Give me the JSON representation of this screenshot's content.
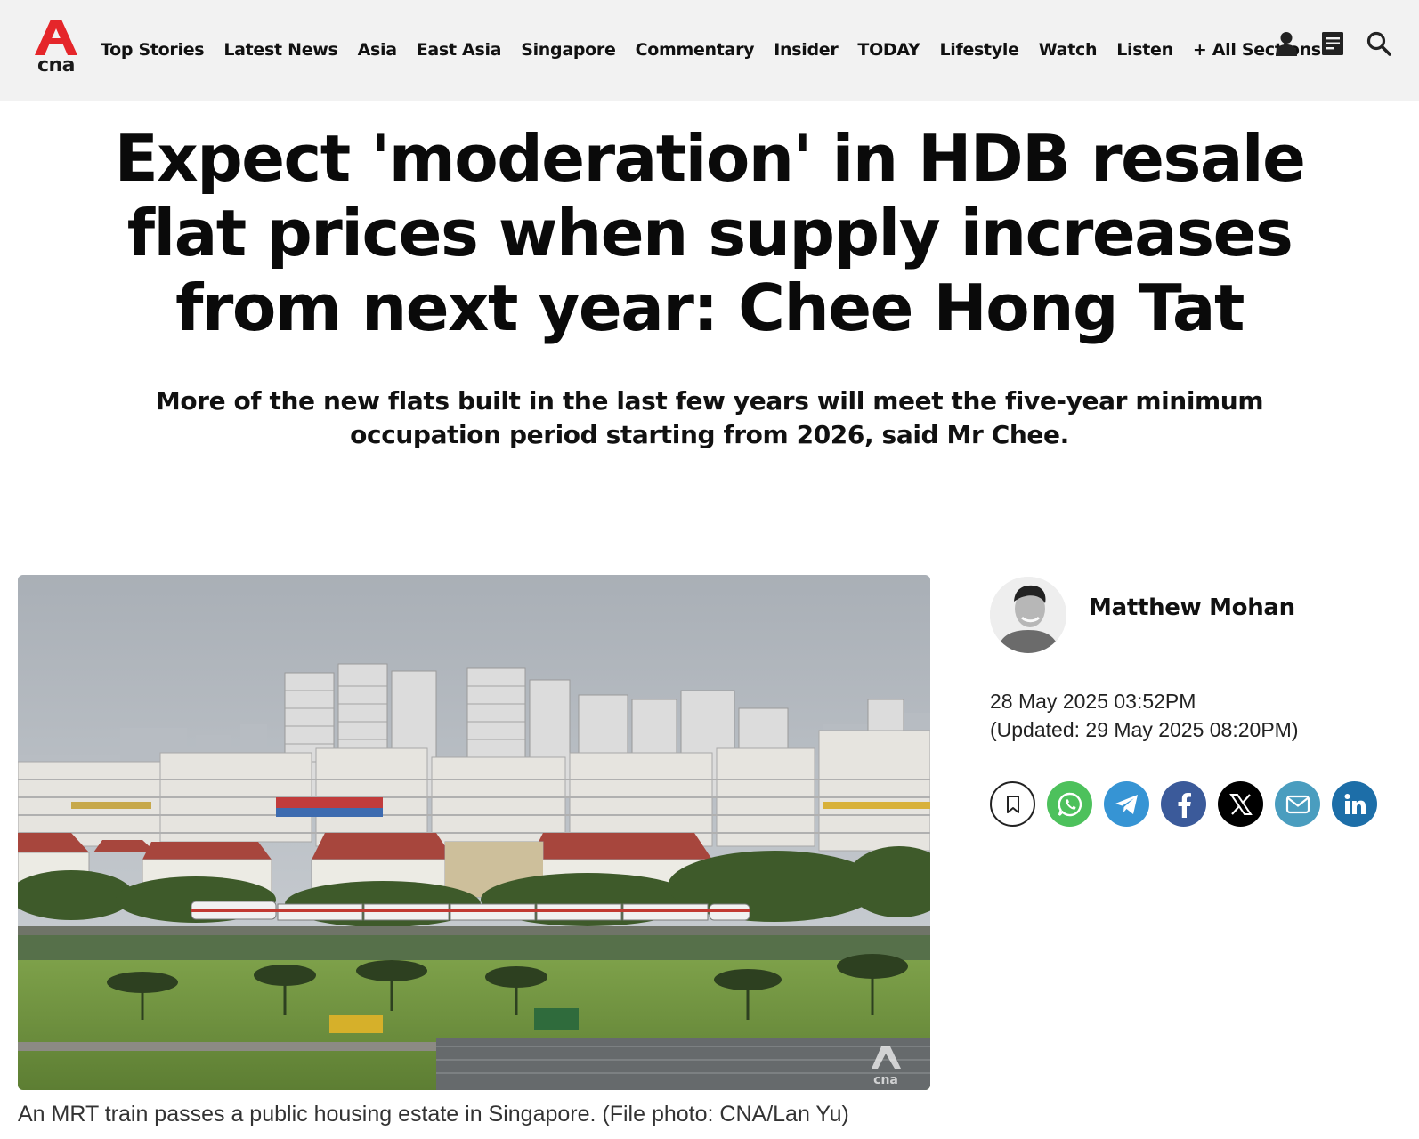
{
  "site": {
    "logo_text": "cna",
    "brand_color": "#e5262a"
  },
  "nav": {
    "items": [
      "Top Stories",
      "Latest News",
      "Asia",
      "East Asia",
      "Singapore",
      "Commentary",
      "Insider",
      "TODAY",
      "Lifestyle",
      "Watch",
      "Listen",
      "+ All Sections"
    ]
  },
  "header_icons": [
    "user-icon",
    "newsletter-icon",
    "search-icon"
  ],
  "article": {
    "headline": "Expect 'moderation' in HDB resale flat prices when supply increases from next year: Chee Hong Tat",
    "subheadline": "More of the new flats built in the last few years will meet the five-year minimum occupation period starting from 2026, said Mr Chee.",
    "image_caption": "An MRT train passes a public housing estate in Singapore. (File photo: CNA/Lan Yu)",
    "image_watermark": "cna"
  },
  "byline": {
    "author": "Matthew Mohan",
    "published": "28 May 2025 03:52PM",
    "updated": "(Updated: 29 May 2025 08:20PM)"
  },
  "share": [
    {
      "name": "bookmark",
      "color": "#ffffff"
    },
    {
      "name": "whatsapp",
      "color": "#4dc15c"
    },
    {
      "name": "telegram",
      "color": "#3694d4"
    },
    {
      "name": "facebook",
      "color": "#3b5a9a"
    },
    {
      "name": "x",
      "color": "#000000"
    },
    {
      "name": "email",
      "color": "#4a9dbf"
    },
    {
      "name": "linkedin",
      "color": "#1d6ea8"
    }
  ]
}
